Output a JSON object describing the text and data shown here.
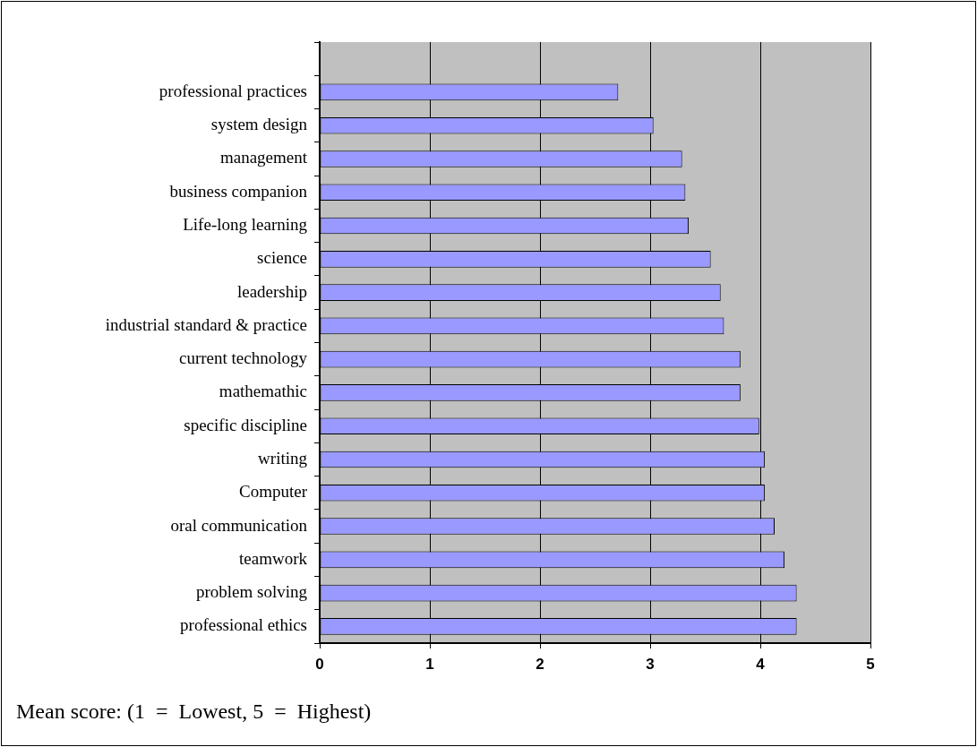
{
  "chart_data": {
    "type": "bar",
    "orientation": "horizontal",
    "categories": [
      null,
      "professional practices",
      "system design",
      "management",
      "business companion",
      "Life-long learning",
      "science",
      "leadership",
      "industrial standard & practice",
      "current technology",
      "mathemathic",
      "specific discipline",
      "writing",
      "Computer",
      "oral communication",
      "teamwork",
      "problem solving",
      "professional ethics"
    ],
    "values": [
      null,
      2.71,
      3.03,
      3.29,
      3.32,
      3.35,
      3.55,
      3.64,
      3.67,
      3.82,
      3.82,
      3.99,
      4.04,
      4.04,
      4.13,
      4.22,
      4.33,
      4.33
    ],
    "color": "#9999ff",
    "xlim": [
      0,
      5
    ],
    "xticks": [
      0,
      1,
      2,
      3,
      4,
      5
    ],
    "grid": "x",
    "annotations": [
      "Mean score: (1  =  Lowest, 5  =  Highest)"
    ]
  }
}
